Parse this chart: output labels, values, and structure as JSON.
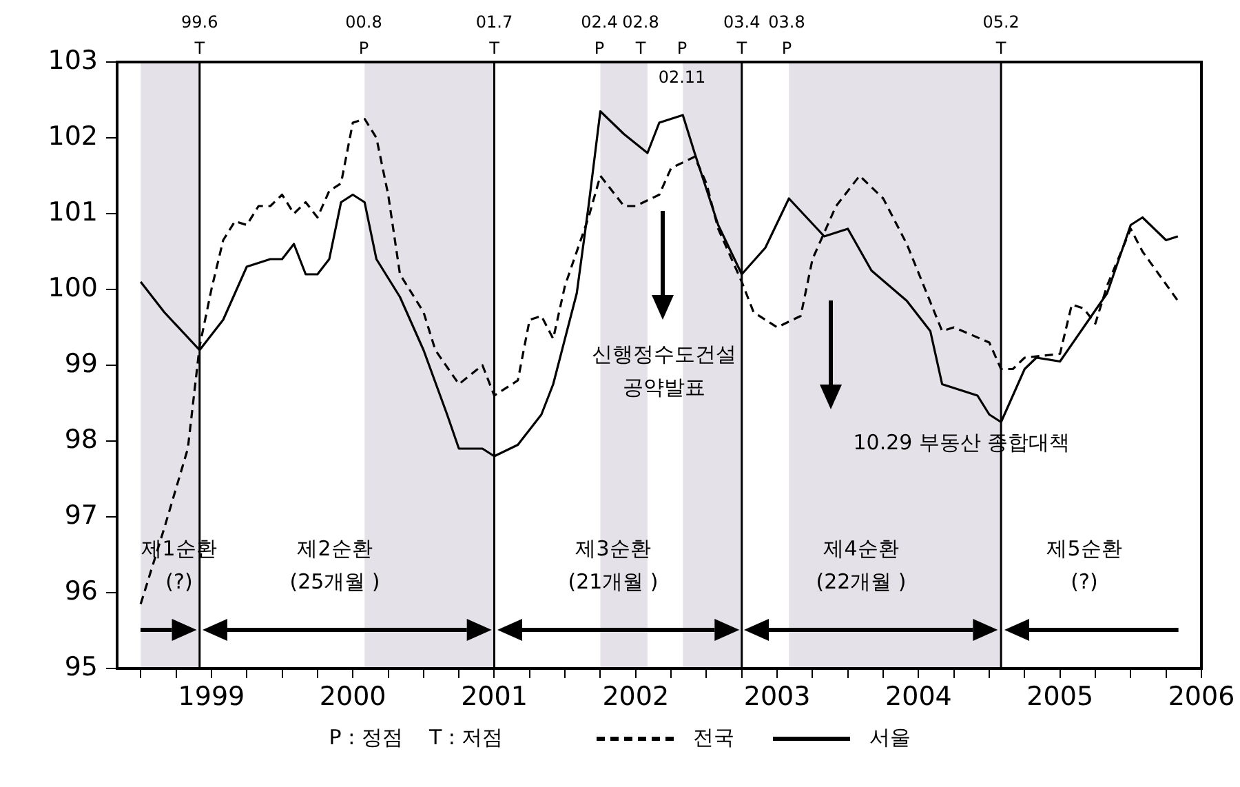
{
  "chart_data": {
    "type": "line",
    "xlim": [
      "1998-11",
      "2006-07"
    ],
    "ylim": [
      95,
      103
    ],
    "yticks": [
      95,
      96,
      97,
      98,
      99,
      100,
      101,
      102,
      103
    ],
    "xticks": [
      {
        "value": "1999-01",
        "label": null
      },
      {
        "value": "1999-04",
        "label": null
      },
      {
        "value": "1999-07",
        "label": "1999"
      },
      {
        "value": "1999-10",
        "label": null
      },
      {
        "value": "2000-01",
        "label": null
      },
      {
        "value": "2000-04",
        "label": null
      },
      {
        "value": "2000-07",
        "label": "2000"
      },
      {
        "value": "2000-10",
        "label": null
      },
      {
        "value": "2001-01",
        "label": null
      },
      {
        "value": "2001-04",
        "label": null
      },
      {
        "value": "2001-07",
        "label": "2001"
      },
      {
        "value": "2001-10",
        "label": null
      },
      {
        "value": "2002-01",
        "label": null
      },
      {
        "value": "2002-04",
        "label": null
      },
      {
        "value": "2002-07",
        "label": "2002"
      },
      {
        "value": "2002-10",
        "label": null
      },
      {
        "value": "2003-01",
        "label": null
      },
      {
        "value": "2003-04",
        "label": null
      },
      {
        "value": "2003-07",
        "label": "2003"
      },
      {
        "value": "2003-10",
        "label": null
      },
      {
        "value": "2004-01",
        "label": null
      },
      {
        "value": "2004-04",
        "label": null
      },
      {
        "value": "2004-07",
        "label": "2004"
      },
      {
        "value": "2004-10",
        "label": null
      },
      {
        "value": "2005-01",
        "label": null
      },
      {
        "value": "2005-04",
        "label": null
      },
      {
        "value": "2005-07",
        "label": "2005"
      },
      {
        "value": "2005-10",
        "label": null
      },
      {
        "value": "2006-01",
        "label": null
      },
      {
        "value": "2006-04",
        "label": null
      },
      {
        "value": "2006-07",
        "label": "2006"
      }
    ],
    "grid": false,
    "legend": "bottom",
    "marker": "none",
    "series": [
      {
        "name": "전국",
        "color": "#000000",
        "line_style": "dashed",
        "x": [
          "1999-01",
          "1999-03",
          "1999-05",
          "1999-06",
          "1999-07",
          "1999-08",
          "1999-09",
          "1999-10",
          "1999-11",
          "1999-12",
          "2000-01",
          "2000-02",
          "2000-03",
          "2000-04",
          "2000-05",
          "2000-06",
          "2000-07",
          "2000-08",
          "2000-09",
          "2000-10",
          "2000-11",
          "2001-01",
          "2001-02",
          "2001-04",
          "2001-06",
          "2001-07",
          "2001-09",
          "2001-10",
          "2001-11",
          "2001-12",
          "2002-01",
          "2002-03",
          "2002-04",
          "2002-06",
          "2002-07",
          "2002-09",
          "2002-10",
          "2002-12",
          "2003-01",
          "2003-02",
          "2003-04",
          "2003-05",
          "2003-07",
          "2003-09",
          "2003-10",
          "2003-12",
          "2004-02",
          "2004-04",
          "2004-06",
          "2004-09",
          "2004-10",
          "2005-01",
          "2005-02",
          "2005-03",
          "2005-04",
          "2005-07",
          "2005-08",
          "2005-09",
          "2005-10",
          "2005-11",
          "2006-01",
          "2006-02",
          "2006-05"
        ],
        "values": [
          95.85,
          96.85,
          97.9,
          99.25,
          100.0,
          100.65,
          100.9,
          100.85,
          101.1,
          101.1,
          101.25,
          101.0,
          101.15,
          100.95,
          101.3,
          101.4,
          102.2,
          102.25,
          102.0,
          101.25,
          100.2,
          99.7,
          99.2,
          98.75,
          99.0,
          98.6,
          98.8,
          99.6,
          99.65,
          99.35,
          100.05,
          100.95,
          101.5,
          101.1,
          101.1,
          101.25,
          101.6,
          101.75,
          101.4,
          100.8,
          100.1,
          99.7,
          99.5,
          99.65,
          100.4,
          101.1,
          101.5,
          101.2,
          100.6,
          99.45,
          99.5,
          99.3,
          98.95,
          98.95,
          99.1,
          99.15,
          99.8,
          99.75,
          99.55,
          100.05,
          100.8,
          100.5,
          99.85
        ]
      },
      {
        "name": "서울",
        "color": "#000000",
        "line_style": "solid",
        "x": [
          "1999-01",
          "1999-03",
          "1999-06",
          "1999-08",
          "1999-10",
          "1999-12",
          "2000-01",
          "2000-02",
          "2000-03",
          "2000-04",
          "2000-05",
          "2000-06",
          "2000-07",
          "2000-08",
          "2000-09",
          "2000-11",
          "2000-12",
          "2001-01",
          "2001-03",
          "2001-04",
          "2001-06",
          "2001-07",
          "2001-09",
          "2001-10",
          "2001-11",
          "2001-12",
          "2002-02",
          "2002-03",
          "2002-04",
          "2002-06",
          "2002-08",
          "2002-09",
          "2002-11",
          "2002-12",
          "2003-02",
          "2003-04",
          "2003-06",
          "2003-08",
          "2003-11",
          "2004-01",
          "2004-03",
          "2004-06",
          "2004-08",
          "2004-09",
          "2004-12",
          "2005-01",
          "2005-02",
          "2005-04",
          "2005-05",
          "2005-07",
          "2005-09",
          "2005-11",
          "2006-01",
          "2006-02",
          "2006-04",
          "2006-05"
        ],
        "values": [
          100.1,
          99.7,
          99.2,
          99.6,
          100.3,
          100.4,
          100.4,
          100.6,
          100.2,
          100.2,
          100.4,
          101.15,
          101.25,
          101.15,
          100.4,
          99.9,
          99.55,
          99.2,
          98.35,
          97.9,
          97.9,
          97.8,
          97.95,
          98.15,
          98.35,
          98.75,
          99.95,
          101.1,
          102.35,
          102.05,
          101.8,
          102.2,
          102.3,
          101.8,
          100.85,
          100.2,
          100.55,
          101.2,
          100.7,
          100.8,
          100.25,
          99.85,
          99.45,
          98.75,
          98.6,
          98.35,
          98.25,
          98.95,
          99.1,
          99.05,
          99.5,
          99.95,
          100.85,
          100.95,
          100.65,
          100.7
        ]
      }
    ],
    "bands": [
      {
        "axis": "x",
        "from": "1999-01",
        "to": "1999-06",
        "color": "#e4e1e8"
      },
      {
        "axis": "x",
        "from": "2000-08",
        "to": "2001-07",
        "color": "#e4e1e8"
      },
      {
        "axis": "x",
        "from": "2002-04",
        "to": "2002-08",
        "color": "#e4e1e8"
      },
      {
        "axis": "x",
        "from": "2002-11",
        "to": "2003-04",
        "color": "#e4e1e8"
      },
      {
        "axis": "x",
        "from": "2003-08",
        "to": "2005-02",
        "color": "#e4e1e8"
      }
    ],
    "ref_lines": [
      {
        "axis": "x",
        "value": "1999-06",
        "color": "#000000",
        "label": "99.6\nT"
      },
      {
        "axis": "x",
        "value": "2001-07",
        "color": "#000000",
        "label": "01.7\nT"
      },
      {
        "axis": "x",
        "value": "2003-04",
        "color": "#000000",
        "label": "03.4\nT"
      },
      {
        "axis": "x",
        "value": "2005-02",
        "color": "#000000",
        "label": "05.2\nT"
      }
    ],
    "annotations": [
      "00.8\nP",
      "02.4\nP",
      "02.8\nT",
      "P",
      "02.11",
      "03.8\nP",
      "신행정수도건설\n공약발표",
      "10.29 부동산 종합대책",
      "제1순환\n(?)",
      "제2순환\n(25개월 )",
      "제3순환\n(21개월 )",
      "제4순환\n(22개월 )",
      "제5순환\n(?)",
      "P : 정점    T : 저점"
    ]
  }
}
